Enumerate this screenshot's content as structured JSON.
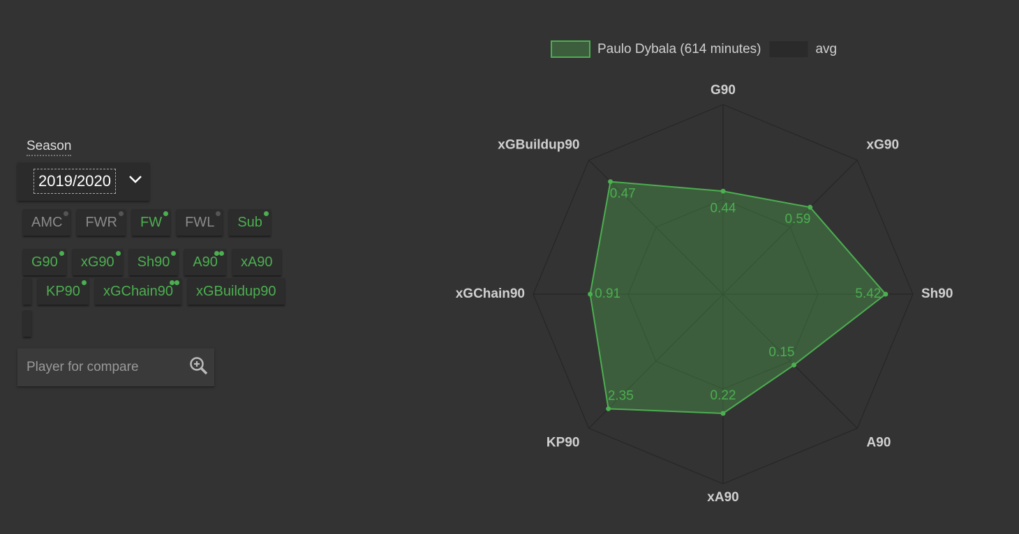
{
  "season_label": "Season",
  "season": "2019/2020",
  "position_filters": [
    {
      "label": "AMC",
      "active": false
    },
    {
      "label": "FWR",
      "active": false
    },
    {
      "label": "FW",
      "active": true
    },
    {
      "label": "FWL",
      "active": false
    },
    {
      "label": "Sub",
      "active": true
    }
  ],
  "stat_filters": [
    "G90",
    "xG90",
    "Sh90",
    "A90",
    "xA90",
    "KP90",
    "xGChain90",
    "xGBuildup90"
  ],
  "compare_placeholder": "Player for compare",
  "chart_data": {
    "type": "radar",
    "axes": [
      "G90",
      "xG90",
      "Sh90",
      "A90",
      "xA90",
      "KP90",
      "xGChain90",
      "xGBuildup90"
    ],
    "axis_max": [
      0.81,
      0.91,
      6.33,
      0.284,
      0.35,
      2.75,
      1.3,
      0.56
    ],
    "legend": "top",
    "series": [
      {
        "name": "Paulo Dybala (614 minutes)",
        "color": "#4caf50",
        "values": [
          0.44,
          0.59,
          5.42,
          0.15,
          0.22,
          2.35,
          0.91,
          0.47
        ]
      },
      {
        "name": "avg",
        "color": "#2a2a2a"
      }
    ]
  }
}
